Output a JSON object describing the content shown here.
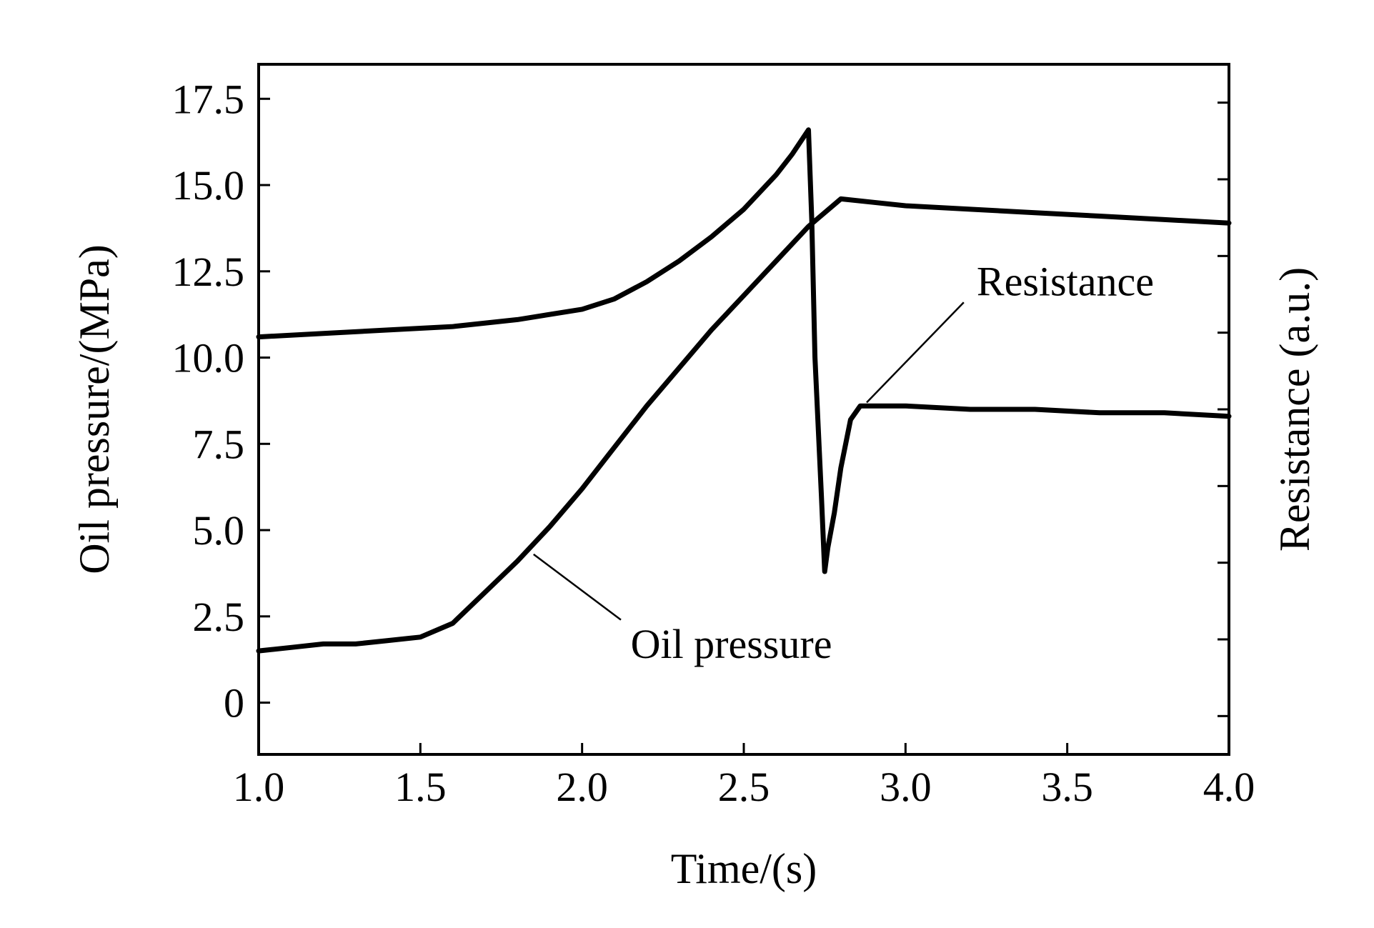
{
  "chart_data": {
    "type": "line",
    "title": "",
    "xlabel": "Time/(s)",
    "ylabel": "Oil pressure/(MPa)",
    "y2label": "Resistance (a.u.)",
    "xlim": [
      1.0,
      4.0
    ],
    "ylim": [
      -1.5,
      18.5
    ],
    "xticks": [
      1.0,
      1.5,
      2.0,
      2.5,
      3.0,
      3.5,
      4.0
    ],
    "xtick_labels": [
      "1.0",
      "1.5",
      "2.0",
      "2.5",
      "3.0",
      "3.5",
      "4.0"
    ],
    "yticks": [
      0,
      2.5,
      5.0,
      7.5,
      10.0,
      12.5,
      15.0,
      17.5
    ],
    "ytick_labels": [
      "0",
      "2.5",
      "5.0",
      "7.5",
      "10.0",
      "12.5",
      "15.0",
      "17.5"
    ],
    "y2_tick_count": 9,
    "grid": false,
    "series": [
      {
        "name": "Oil pressure",
        "x": [
          1.0,
          1.1,
          1.2,
          1.3,
          1.4,
          1.5,
          1.6,
          1.7,
          1.8,
          1.9,
          2.0,
          2.1,
          2.2,
          2.3,
          2.4,
          2.5,
          2.6,
          2.7,
          2.8,
          2.9,
          3.0,
          3.2,
          3.4,
          3.6,
          3.8,
          4.0
        ],
        "y": [
          1.5,
          1.6,
          1.7,
          1.7,
          1.8,
          1.9,
          2.3,
          3.2,
          4.1,
          5.1,
          6.2,
          7.4,
          8.6,
          9.7,
          10.8,
          11.8,
          12.8,
          13.8,
          14.6,
          14.5,
          14.4,
          14.3,
          14.2,
          14.1,
          14.0,
          13.9
        ]
      },
      {
        "name": "Resistance",
        "x": [
          1.0,
          1.2,
          1.4,
          1.6,
          1.8,
          2.0,
          2.1,
          2.2,
          2.3,
          2.4,
          2.5,
          2.6,
          2.65,
          2.7,
          2.71,
          2.72,
          2.74,
          2.75,
          2.76,
          2.78,
          2.8,
          2.83,
          2.86,
          3.0,
          3.2,
          3.4,
          3.6,
          3.8,
          4.0
        ],
        "y": [
          10.6,
          10.7,
          10.8,
          10.9,
          11.1,
          11.4,
          11.7,
          12.2,
          12.8,
          13.5,
          14.3,
          15.3,
          15.9,
          16.6,
          14.0,
          10.0,
          6.0,
          3.8,
          4.5,
          5.5,
          6.8,
          8.2,
          8.6,
          8.6,
          8.5,
          8.5,
          8.4,
          8.4,
          8.3
        ]
      }
    ],
    "annotations": [
      {
        "text": "Resistance",
        "target_series": "Resistance"
      },
      {
        "text": "Oil pressure",
        "target_series": "Oil pressure"
      }
    ],
    "legend": "none"
  }
}
